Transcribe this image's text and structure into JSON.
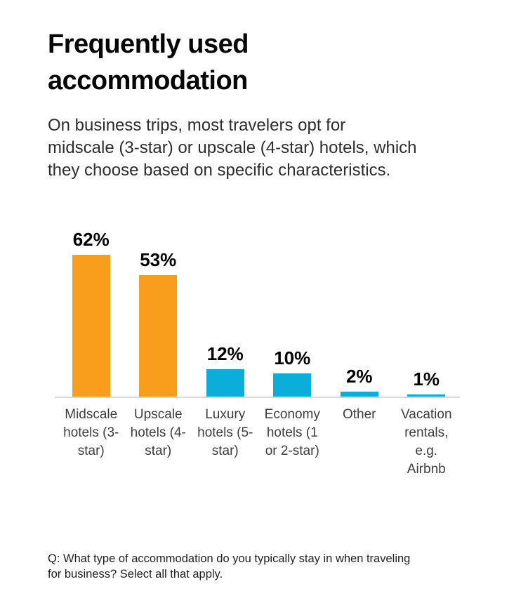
{
  "header": {
    "title": "Frequently used accommodation",
    "title_lines": [
      "Frequently used",
      "accommodation"
    ],
    "subtitle": "On business trips, most travelers opt for midscale (3-star) or upscale (4-star) hotels, which they choose based on specific characteristics.",
    "subtitle_lines": [
      "On business trips, most travelers opt for",
      "midscale (3-star) or upscale (4-star) hotels, which",
      "they choose based on specific characteristics."
    ]
  },
  "chart_data": {
    "type": "bar",
    "title": "Frequently used accommodation",
    "xlabel": "",
    "ylabel": "",
    "unit": "%",
    "ylim": [
      0,
      65
    ],
    "grid": false,
    "legend": "none",
    "categories": [
      "Midscale hotels (3-star)",
      "Upscale hotels (4-star)",
      "Luxury hotels (5-star)",
      "Economy hotels (1 or 2-star)",
      "Other",
      "Vacation rentals, e.g. Airbnb"
    ],
    "category_lines": [
      [
        "Midscale",
        "hotels (3-",
        "star)"
      ],
      [
        "Upscale",
        "hotels (4-",
        "star)"
      ],
      [
        "Luxury",
        "hotels (5-",
        "star)"
      ],
      [
        "Economy",
        "hotels (1",
        "or 2-star)"
      ],
      [
        "Other"
      ],
      [
        "Vacation",
        "rentals,",
        "e.g.",
        "Airbnb"
      ]
    ],
    "values": [
      62,
      53,
      12,
      10,
      2,
      1
    ],
    "value_labels": [
      "62%",
      "53%",
      "12%",
      "10%",
      "2%",
      "1%"
    ],
    "bar_colors": [
      "#F99E1C",
      "#F99E1C",
      "#0AAED8",
      "#0AAED8",
      "#0AAED8",
      "#0AAED8"
    ],
    "highlight_color": "#F99E1C",
    "base_color": "#0AAED8",
    "axis_line_color": "#D9D9D9"
  },
  "footnote": {
    "text": "Q: What type of accommodation do you typically stay in when traveling for business? Select all that apply.",
    "lines": [
      "Q: What type of accommodation do you typically stay in when traveling",
      "for business? Select all that apply."
    ]
  }
}
